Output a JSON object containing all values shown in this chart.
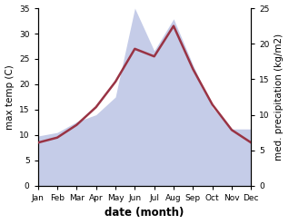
{
  "months": [
    "Jan",
    "Feb",
    "Mar",
    "Apr",
    "May",
    "Jun",
    "Jul",
    "Aug",
    "Sep",
    "Oct",
    "Nov",
    "Dec"
  ],
  "temperature": [
    8.5,
    9.5,
    12.0,
    15.5,
    20.5,
    27.0,
    25.5,
    31.5,
    23.0,
    16.0,
    11.0,
    8.5
  ],
  "precipitation": [
    7.0,
    7.5,
    9.0,
    10.0,
    12.5,
    25.0,
    19.0,
    23.5,
    17.0,
    11.0,
    8.0,
    8.0
  ],
  "temp_color": "#993344",
  "precip_fill_color": "#c5cce8",
  "precip_edge_color": "#b0b8e0",
  "background_color": "#ffffff",
  "ylabel_left": "max temp (C)",
  "ylabel_right": "med. precipitation (kg/m2)",
  "xlabel": "date (month)",
  "ylim_left": [
    0,
    35
  ],
  "ylim_right": [
    0,
    25
  ],
  "yticks_left": [
    0,
    5,
    10,
    15,
    20,
    25,
    30,
    35
  ],
  "yticks_right": [
    0,
    5,
    10,
    15,
    20,
    25
  ],
  "axis_fontsize": 7.5,
  "tick_fontsize": 6.5,
  "xlabel_fontsize": 8.5,
  "temp_linewidth": 1.8
}
